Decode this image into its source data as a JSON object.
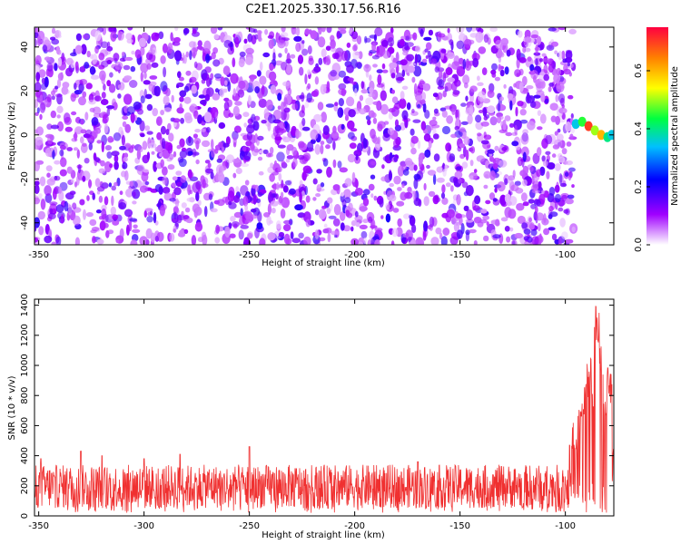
{
  "title": "C2E1.2025.330.17.56.R16",
  "chart_data": [
    {
      "type": "heatmap",
      "xlabel": "Height of straight line (km)",
      "ylabel": "Frequency (Hz)",
      "xlim": [
        -352,
        -77
      ],
      "ylim": [
        -50,
        49
      ],
      "xticks": [
        -350,
        -300,
        -250,
        -200,
        -150,
        -100
      ],
      "yticks": [
        -40,
        -20,
        0,
        20,
        40
      ],
      "grid": false,
      "colorbar": {
        "label": "Normalized spectral amplitude",
        "range": [
          0,
          0.75
        ],
        "ticks": [
          0.0,
          0.2,
          0.4,
          0.6
        ],
        "colors": [
          "#ffffff",
          "#a000ff",
          "#0000ff",
          "#00c0ff",
          "#00ff40",
          "#ffff00",
          "#ff8000",
          "#ff0040"
        ]
      },
      "noise_region": {
        "x": [
          -352,
          -96
        ],
        "frequency": [
          -50,
          49
        ],
        "amplitude_range": [
          0.0,
          0.15
        ]
      },
      "signal": [
        {
          "x": -95,
          "frequency": 5,
          "amplitude": 0.35
        },
        {
          "x": -92,
          "frequency": 6,
          "amplitude": 0.45
        },
        {
          "x": -89,
          "frequency": 4,
          "amplitude": 0.7
        },
        {
          "x": -86,
          "frequency": 2,
          "amplitude": 0.5
        },
        {
          "x": -83,
          "frequency": 0,
          "amplitude": 0.6
        },
        {
          "x": -80,
          "frequency": -1,
          "amplitude": 0.4
        },
        {
          "x": -78,
          "frequency": 0,
          "amplitude": 0.35
        }
      ]
    },
    {
      "type": "line",
      "xlabel": "Height of straight line (km)",
      "ylabel": "SNR (10 * v/v)",
      "xlim": [
        -352,
        -77
      ],
      "ylim": [
        0,
        1440
      ],
      "xticks": [
        -350,
        -300,
        -250,
        -200,
        -150,
        -100
      ],
      "yticks": [
        0,
        200,
        400,
        600,
        800,
        1000,
        1200,
        1400
      ],
      "grid": false,
      "color": "#f03030",
      "baseline_band": [
        50,
        340
      ],
      "spikes": [
        {
          "x": -349,
          "y": 380
        },
        {
          "x": -330,
          "y": 430
        },
        {
          "x": -320,
          "y": 400
        },
        {
          "x": -300,
          "y": 380
        },
        {
          "x": -283,
          "y": 410
        },
        {
          "x": -250,
          "y": 460
        },
        {
          "x": -170,
          "y": 360
        },
        {
          "x": -98,
          "y": 470
        },
        {
          "x": -95,
          "y": 520
        },
        {
          "x": -93,
          "y": 720
        },
        {
          "x": -91,
          "y": 880
        },
        {
          "x": -89,
          "y": 1050
        },
        {
          "x": -87,
          "y": 960
        },
        {
          "x": -85,
          "y": 1400
        },
        {
          "x": -83,
          "y": 1220
        },
        {
          "x": -81,
          "y": 880
        },
        {
          "x": -79,
          "y": 1000
        }
      ]
    }
  ]
}
